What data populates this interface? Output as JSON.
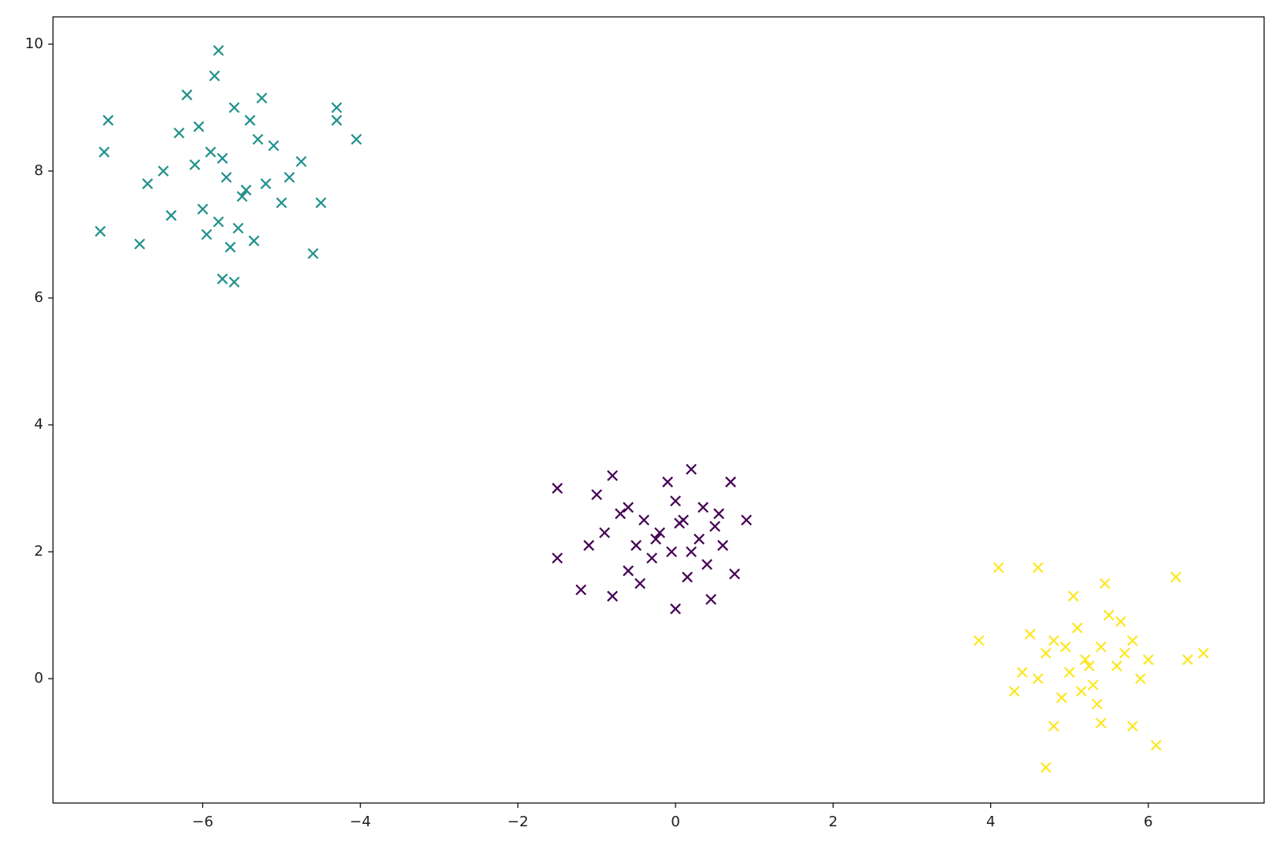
{
  "chart_data": {
    "type": "scatter",
    "marker": "x",
    "xlim": [
      -7.9,
      7.47
    ],
    "ylim": [
      -1.96,
      10.43
    ],
    "xticks": [
      {
        "value": -6,
        "label": "−6"
      },
      {
        "value": -4,
        "label": "−4"
      },
      {
        "value": -2,
        "label": "−2"
      },
      0,
      2,
      4,
      6
    ],
    "yticks": [
      0,
      2,
      4,
      6,
      8,
      10
    ],
    "series": [
      {
        "color": "#21918c",
        "x": [
          -5.7,
          -5.9,
          -5.5,
          -6.1,
          -5.3,
          -5.8,
          -6.3,
          -5.6,
          -5.2,
          -6.0,
          -5.4,
          -6.5,
          -5.0,
          -5.75,
          -5.95,
          -5.45,
          -6.2,
          -5.65,
          -5.1,
          -6.4,
          -4.9,
          -5.85,
          -5.55,
          -6.05,
          -5.35,
          -7.2,
          -7.25,
          -7.3,
          -4.3,
          -4.3,
          -4.05,
          -5.8,
          -5.6,
          -5.75,
          -6.8,
          -4.5,
          -4.6,
          -6.7,
          -4.75,
          -5.25
        ],
        "values": [
          7.9,
          8.3,
          7.6,
          8.1,
          8.5,
          7.2,
          8.6,
          9.0,
          7.8,
          7.4,
          8.8,
          8.0,
          7.5,
          8.2,
          7.0,
          7.7,
          9.2,
          6.8,
          8.4,
          7.3,
          7.9,
          9.5,
          7.1,
          8.7,
          6.9,
          8.8,
          8.3,
          7.05,
          9.0,
          8.8,
          8.5,
          9.9,
          6.25,
          6.3,
          6.85,
          7.5,
          6.7,
          7.8,
          8.15,
          9.15
        ]
      },
      {
        "color": "#440154",
        "x": [
          -0.2,
          0.1,
          -0.5,
          0.3,
          -0.7,
          0.0,
          -0.3,
          0.5,
          -0.9,
          0.2,
          -0.1,
          -0.6,
          0.4,
          -0.4,
          0.6,
          -1.0,
          0.15,
          -0.25,
          -0.8,
          0.35,
          -0.05,
          -0.45,
          0.55,
          -1.1,
          0.2,
          -1.5,
          -1.5,
          0.9,
          0.7,
          -1.2,
          0.0,
          0.45,
          -0.8,
          0.75,
          -0.6,
          0.05
        ],
        "values": [
          2.3,
          2.5,
          2.1,
          2.2,
          2.6,
          2.8,
          1.9,
          2.4,
          2.3,
          2.0,
          3.1,
          2.7,
          1.8,
          2.5,
          2.1,
          2.9,
          1.6,
          2.2,
          3.2,
          2.7,
          2.0,
          1.5,
          2.6,
          2.1,
          3.3,
          3.0,
          1.9,
          2.5,
          3.1,
          1.4,
          1.1,
          1.25,
          1.3,
          1.65,
          1.7,
          2.45
        ]
      },
      {
        "color": "#fde725",
        "x": [
          5.2,
          5.4,
          5.0,
          5.6,
          4.8,
          5.3,
          5.1,
          5.7,
          4.6,
          5.5,
          4.9,
          5.8,
          5.25,
          5.05,
          4.7,
          5.9,
          5.35,
          4.5,
          5.15,
          5.65,
          4.4,
          6.0,
          5.45,
          4.95,
          4.1,
          4.6,
          6.35,
          6.7,
          3.85,
          4.7,
          6.1,
          6.5,
          5.8,
          4.8,
          5.4,
          4.3
        ],
        "values": [
          0.3,
          0.5,
          0.1,
          0.2,
          0.6,
          -0.1,
          0.8,
          0.4,
          0.0,
          1.0,
          -0.3,
          0.6,
          0.2,
          1.3,
          0.4,
          0.0,
          -0.4,
          0.7,
          -0.2,
          0.9,
          0.1,
          0.3,
          1.5,
          0.5,
          1.75,
          1.75,
          1.6,
          0.4,
          0.6,
          -1.4,
          -1.05,
          0.3,
          -0.75,
          -0.75,
          -0.7,
          -0.2
        ]
      }
    ]
  }
}
